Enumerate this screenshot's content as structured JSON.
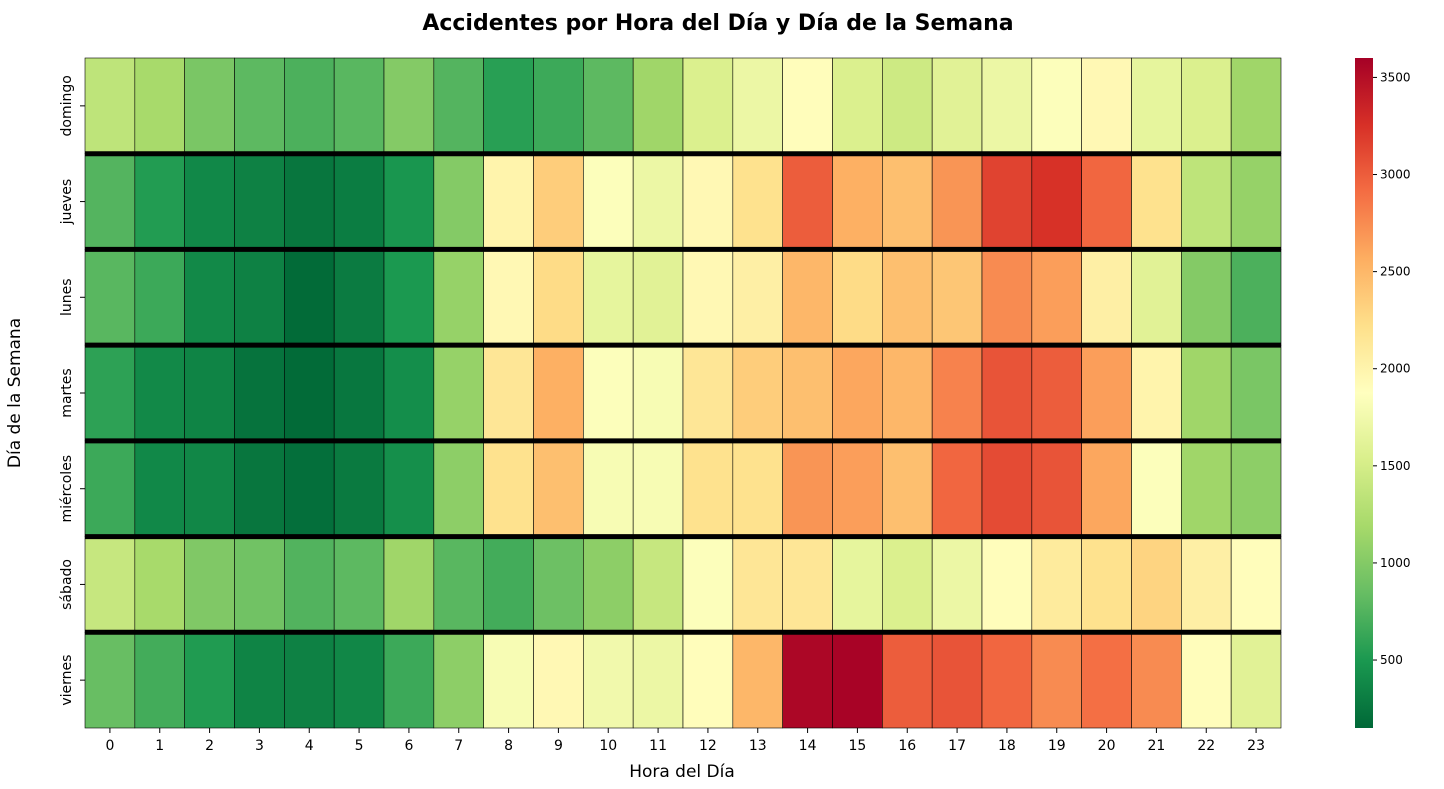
{
  "chart_data": {
    "type": "heatmap",
    "title": "Accidentes por Hora del Día y Día de la Semana",
    "xlabel": "Hora del Día",
    "ylabel": "Día de la Semana",
    "x_categories": [
      "0",
      "1",
      "2",
      "3",
      "4",
      "5",
      "6",
      "7",
      "8",
      "9",
      "10",
      "11",
      "12",
      "13",
      "14",
      "15",
      "16",
      "17",
      "18",
      "19",
      "20",
      "21",
      "22",
      "23"
    ],
    "y_categories": [
      "domingo",
      "jueves",
      "lunes",
      "martes",
      "miércoles",
      "sábado",
      "viernes"
    ],
    "values": [
      [
        1350,
        1200,
        950,
        800,
        720,
        780,
        1000,
        760,
        560,
        650,
        800,
        1150,
        1550,
        1700,
        1900,
        1550,
        1450,
        1600,
        1700,
        1850,
        1950,
        1650,
        1550,
        1150
      ],
      [
        760,
        530,
        380,
        330,
        250,
        300,
        480,
        1000,
        2000,
        2350,
        1850,
        1700,
        1950,
        2200,
        3000,
        2550,
        2450,
        2700,
        3150,
        3250,
        2950,
        2200,
        1350,
        1100
      ],
      [
        780,
        650,
        390,
        330,
        170,
        290,
        500,
        1100,
        1950,
        2250,
        1650,
        1600,
        1950,
        2050,
        2500,
        2250,
        2450,
        2400,
        2750,
        2650,
        2050,
        1600,
        1000,
        720
      ],
      [
        580,
        390,
        350,
        230,
        170,
        260,
        420,
        1100,
        2150,
        2550,
        1850,
        1800,
        2150,
        2350,
        2450,
        2600,
        2500,
        2800,
        3050,
        3000,
        2650,
        2000,
        1150,
        950
      ],
      [
        650,
        380,
        370,
        250,
        200,
        280,
        430,
        1050,
        2200,
        2450,
        1800,
        1800,
        2200,
        2200,
        2700,
        2650,
        2450,
        2950,
        3100,
        3050,
        2600,
        1850,
        1150,
        1050
      ],
      [
        1400,
        1200,
        980,
        900,
        750,
        800,
        1150,
        780,
        680,
        880,
        1050,
        1400,
        1850,
        2150,
        2150,
        1650,
        1550,
        1700,
        1900,
        2100,
        2200,
        2300,
        2050,
        1900
      ],
      [
        850,
        680,
        520,
        350,
        330,
        370,
        650,
        1050,
        1800,
        1950,
        1750,
        1700,
        1900,
        2500,
        3550,
        3580,
        3000,
        3050,
        2950,
        2750,
        2900,
        2750,
        1900,
        1600
      ]
    ],
    "zlim": [
      150,
      3600
    ],
    "colorbar_ticks": [
      500,
      1000,
      1500,
      2000,
      2500,
      3000,
      3500
    ],
    "colormap": "RdYlGn_r",
    "colormap_stops": [
      "#006837",
      "#1a9850",
      "#66bd63",
      "#a6d96a",
      "#d9ef8b",
      "#ffffbf",
      "#fee08b",
      "#fdae61",
      "#f46d43",
      "#d73027",
      "#a50026"
    ],
    "row_separator_color": "#000000"
  }
}
